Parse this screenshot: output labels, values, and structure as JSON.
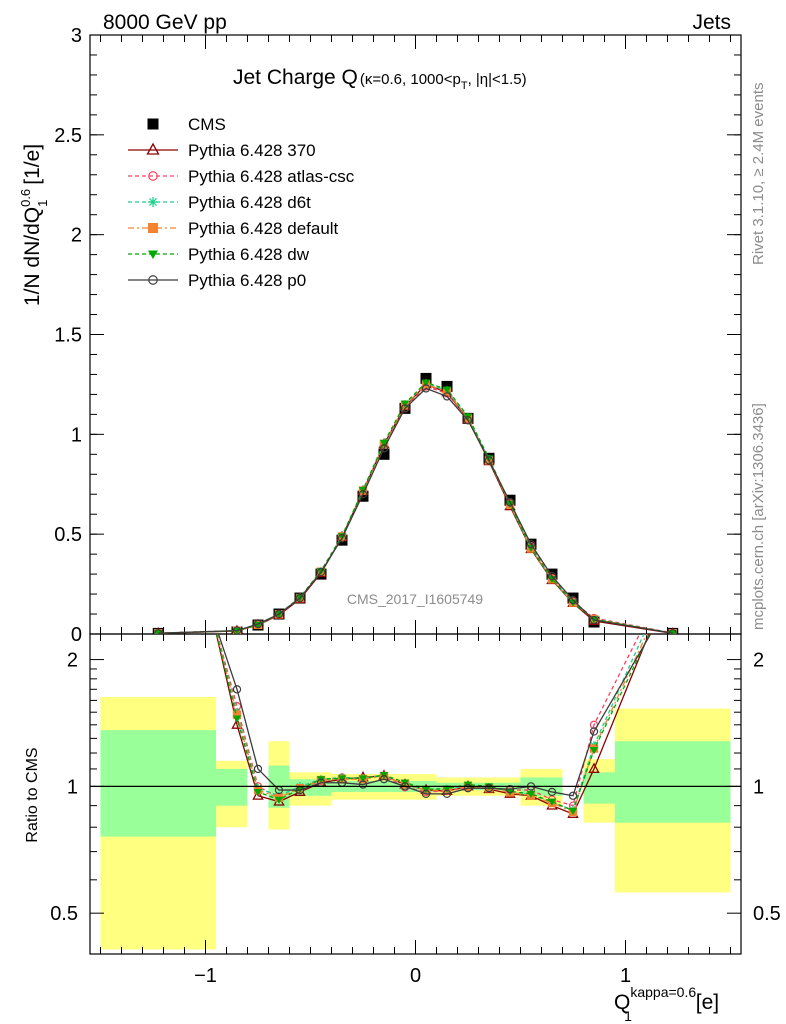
{
  "header": {
    "energy_label": "8000 GeV pp",
    "process_label": "Jets"
  },
  "side_labels": {
    "rivet": "Rivet 3.1.10, ≥ 2.4M events",
    "mcplots": "mcplots.cern.ch [arXiv:1306.3436]"
  },
  "chart_data": [
    {
      "type": "line",
      "title": "Jet Charge Q",
      "subtitle": "(κ=0.6, 1000<p",
      "subtitle_sub": "T",
      "subtitle_tail": ", |η|<1.5)",
      "watermark": "CMS_2017_I1605749",
      "ylabel": "1/N dN/dQ",
      "ylabel_sup": "0.6",
      "ylabel_sub": "1",
      "ylabel_unit": " [1/e]",
      "xlim": [
        -1.55,
        1.55
      ],
      "ylim": [
        0,
        3
      ],
      "yticks": [
        "0",
        "0.5",
        "1",
        "1.5",
        "2",
        "2.5",
        "3"
      ],
      "ytick_values": [
        0,
        0.5,
        1,
        1.5,
        2,
        2.5,
        3
      ],
      "legend_position": "top-left",
      "x": [
        -1.225,
        -0.95,
        -0.85,
        -0.75,
        -0.65,
        -0.55,
        -0.45,
        -0.35,
        -0.25,
        -0.15,
        -0.05,
        0.05,
        0.15,
        0.25,
        0.35,
        0.45,
        0.55,
        0.65,
        0.75,
        0.85,
        0.95,
        1.225
      ],
      "series": [
        {
          "name": "CMS",
          "color": "#000000",
          "marker": "square",
          "dash": "none",
          "values": [
            0.003,
            null,
            0.01,
            0.045,
            0.1,
            0.18,
            0.3,
            0.47,
            0.69,
            0.9,
            1.13,
            1.28,
            1.24,
            1.08,
            0.88,
            0.67,
            0.45,
            0.3,
            0.18,
            0.06,
            null,
            0.003
          ]
        },
        {
          "name": "Pythia 6.428 370",
          "color": "#8b0000",
          "marker": "triangle-open",
          "dash": "none",
          "values": [
            0.003,
            null,
            0.015,
            0.045,
            0.095,
            0.175,
            0.305,
            0.485,
            0.715,
            0.95,
            1.14,
            1.25,
            1.21,
            1.075,
            0.865,
            0.64,
            0.425,
            0.27,
            0.155,
            0.065,
            null,
            0.003
          ]
        },
        {
          "name": "Pythia 6.428 atlas-csc",
          "color": "#ff3f5f",
          "marker": "circle-open",
          "dash": "4,3",
          "values": [
            0.004,
            null,
            0.017,
            0.047,
            0.098,
            0.18,
            0.31,
            0.49,
            0.72,
            0.95,
            1.13,
            1.24,
            1.205,
            1.075,
            0.87,
            0.655,
            0.44,
            0.28,
            0.162,
            0.08,
            null,
            0.005
          ]
        },
        {
          "name": "Pythia 6.428 d6t",
          "color": "#1fcf8f",
          "marker": "star",
          "dash": "4,3",
          "values": [
            0.004,
            null,
            0.016,
            0.047,
            0.1,
            0.182,
            0.315,
            0.49,
            0.72,
            0.955,
            1.15,
            1.255,
            1.22,
            1.085,
            0.875,
            0.65,
            0.43,
            0.275,
            0.158,
            0.075,
            null,
            0.004
          ]
        },
        {
          "name": "Pythia 6.428 default",
          "color": "#f58231",
          "marker": "square",
          "dash": "6,3,2,3",
          "values": [
            0.004,
            null,
            0.016,
            0.046,
            0.099,
            0.18,
            0.312,
            0.488,
            0.718,
            0.952,
            1.145,
            1.25,
            1.215,
            1.08,
            0.87,
            0.648,
            0.428,
            0.274,
            0.157,
            0.074,
            null,
            0.004
          ]
        },
        {
          "name": "Pythia 6.428 dw",
          "color": "#00a800",
          "marker": "triangle-down",
          "dash": "4,3",
          "values": [
            0.004,
            null,
            0.016,
            0.046,
            0.1,
            0.183,
            0.316,
            0.49,
            0.722,
            0.958,
            1.155,
            1.26,
            1.225,
            1.09,
            0.88,
            0.652,
            0.432,
            0.276,
            0.158,
            0.074,
            null,
            0.004
          ]
        },
        {
          "name": "Pythia 6.428 p0",
          "color": "#3c3c3c",
          "marker": "circle-open",
          "dash": "none",
          "values": [
            0.004,
            null,
            0.017,
            0.05,
            0.1,
            0.18,
            0.31,
            0.48,
            0.7,
            0.93,
            1.13,
            1.23,
            1.19,
            1.07,
            0.87,
            0.66,
            0.45,
            0.29,
            0.17,
            0.07,
            null,
            0.004
          ]
        }
      ]
    },
    {
      "type": "line",
      "ylabel": "Ratio to CMS",
      "xlabel": "Q",
      "xlabel_sup": "kappa=0.6",
      "xlabel_sub": "1",
      "xlabel_unit": " [e]",
      "xlim": [
        -1.55,
        1.55
      ],
      "ylim": [
        0.4,
        2.3
      ],
      "log_y": true,
      "reference_line": 1,
      "xticks": [
        "−1",
        "0",
        "1"
      ],
      "xtick_values": [
        -1,
        0,
        1
      ],
      "yticks": [
        "0.5",
        "1",
        "2"
      ],
      "ytick_values": [
        0.5,
        1,
        2
      ],
      "bands": [
        {
          "x0": -1.5,
          "x1": -0.95,
          "yellow": [
            0.41,
            1.63
          ],
          "green": [
            0.76,
            1.36
          ]
        },
        {
          "x0": -0.95,
          "x1": -0.8,
          "yellow": [
            0.8,
            1.15
          ],
          "green": [
            0.9,
            1.1
          ]
        },
        {
          "x0": -0.7,
          "x1": -0.6,
          "yellow": [
            0.79,
            1.28
          ],
          "green": [
            0.89,
            1.12
          ]
        },
        {
          "x0": -0.6,
          "x1": -0.4,
          "yellow": [
            0.9,
            1.08
          ],
          "green": [
            0.95,
            1.04
          ]
        },
        {
          "x0": -0.4,
          "x1": 0.1,
          "yellow": [
            0.93,
            1.07
          ],
          "green": [
            0.97,
            1.03
          ]
        },
        {
          "x0": 0.1,
          "x1": 0.5,
          "yellow": [
            0.95,
            1.05
          ],
          "green": [
            0.98,
            1.02
          ]
        },
        {
          "x0": 0.5,
          "x1": 0.7,
          "yellow": [
            0.9,
            1.1
          ],
          "green": [
            0.95,
            1.05
          ]
        },
        {
          "x0": 0.8,
          "x1": 0.95,
          "yellow": [
            0.82,
            1.16
          ],
          "green": [
            0.91,
            1.08
          ]
        },
        {
          "x0": 0.95,
          "x1": 1.5,
          "yellow": [
            0.56,
            1.53
          ],
          "green": [
            0.82,
            1.28
          ]
        }
      ],
      "x": [
        -1.225,
        -0.95,
        -0.85,
        -0.75,
        -0.65,
        -0.55,
        -0.45,
        -0.35,
        -0.25,
        -0.15,
        -0.05,
        0.05,
        0.15,
        0.25,
        0.35,
        0.45,
        0.55,
        0.65,
        0.75,
        0.85,
        0.95,
        1.225
      ],
      "series": [
        {
          "name": "Pythia 6.428 370",
          "values": [
            null,
            null,
            1.4,
            0.95,
            0.92,
            0.97,
            1.02,
            1.04,
            1.05,
            1.06,
            1.01,
            0.98,
            0.975,
            1.0,
            0.985,
            0.96,
            0.95,
            0.9,
            0.86,
            1.1,
            null,
            null
          ]
        },
        {
          "name": "Pythia 6.428 atlas-csc",
          "values": [
            null,
            null,
            1.55,
            1.0,
            0.94,
            0.99,
            1.03,
            1.05,
            1.045,
            1.06,
            0.995,
            0.97,
            0.975,
            0.995,
            0.99,
            0.98,
            0.98,
            0.93,
            0.9,
            1.4,
            null,
            null
          ]
        },
        {
          "name": "Pythia 6.428 d6t",
          "values": [
            null,
            null,
            1.5,
            0.99,
            0.95,
            1.0,
            1.04,
            1.05,
            1.045,
            1.06,
            1.01,
            0.98,
            0.985,
            1.005,
            0.995,
            0.97,
            0.955,
            0.915,
            0.88,
            1.25,
            null,
            null
          ]
        },
        {
          "name": "Pythia 6.428 default",
          "values": [
            null,
            null,
            1.48,
            0.98,
            0.94,
            0.99,
            1.035,
            1.04,
            1.04,
            1.058,
            1.012,
            0.978,
            0.98,
            1.0,
            0.99,
            0.967,
            0.951,
            0.913,
            0.87,
            1.23,
            null,
            null
          ]
        },
        {
          "name": "Pythia 6.428 dw",
          "values": [
            null,
            null,
            1.45,
            0.97,
            0.93,
            0.985,
            1.04,
            1.045,
            1.045,
            1.064,
            1.022,
            0.984,
            0.988,
            1.01,
            1.0,
            0.973,
            0.96,
            0.92,
            0.875,
            1.22,
            null,
            null
          ]
        },
        {
          "name": "Pythia 6.428 p0",
          "values": [
            null,
            null,
            1.7,
            1.1,
            0.98,
            0.98,
            1.02,
            1.02,
            1.01,
            1.04,
            1.0,
            0.96,
            0.96,
            0.99,
            0.99,
            0.985,
            1.0,
            0.97,
            0.95,
            1.35,
            null,
            null
          ]
        }
      ]
    }
  ]
}
